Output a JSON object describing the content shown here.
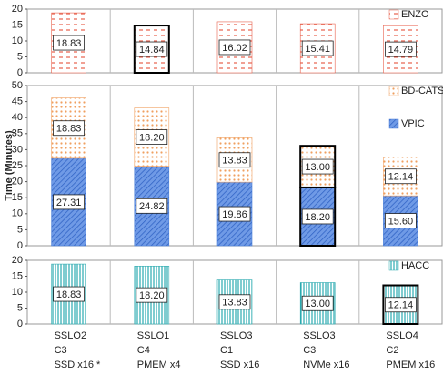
{
  "chart_data": [
    {
      "type": "bar",
      "stacked": true,
      "ylim": [
        0,
        20
      ],
      "yticks": [
        0,
        5,
        10,
        15,
        20
      ],
      "series": [
        {
          "name": "ENZO",
          "color": "#e8604c",
          "pattern": "dash",
          "values": [
            18.83,
            14.84,
            16.02,
            15.41,
            14.79
          ],
          "value_labels": [
            "18.83",
            "14.84",
            "16.02",
            "15.41",
            "14.79"
          ],
          "highlight": [
            1
          ]
        }
      ]
    },
    {
      "type": "bar",
      "stacked": true,
      "y_label": "Time (Minutes)",
      "ylim": [
        0,
        50
      ],
      "yticks": [
        0,
        5,
        10,
        15,
        20,
        25,
        30,
        35,
        40,
        45,
        50
      ],
      "series": [
        {
          "name": "VPIC",
          "color": "#4a7fd8",
          "pattern": "hatch",
          "values": [
            27.31,
            24.82,
            19.86,
            18.2,
            15.6
          ],
          "value_labels": [
            "27.31",
            "24.82",
            "19.86",
            "18.20",
            "15.60"
          ],
          "highlight": [
            3
          ]
        },
        {
          "name": "BD-CATS",
          "color": "#f0a060",
          "pattern": "dots",
          "values": [
            18.83,
            18.2,
            13.83,
            13.0,
            12.14
          ],
          "value_labels": [
            "18.83",
            "18.20",
            "13.83",
            "13.00",
            "12.14"
          ],
          "highlight": [
            3
          ]
        }
      ]
    },
    {
      "type": "bar",
      "stacked": true,
      "ylim": [
        0,
        20
      ],
      "yticks": [
        0,
        5,
        10,
        15,
        20
      ],
      "categories": [
        [
          "SSLO2",
          "C3",
          "SSD x16 *"
        ],
        [
          "SSLO1",
          "C4",
          "PMEM x4"
        ],
        [
          "SSLO3",
          "C1",
          "SSD x16"
        ],
        [
          "SSLO3",
          "C3",
          "NVMe x16"
        ],
        [
          "SSLO4",
          "C2",
          "PMEM x16"
        ]
      ],
      "series": [
        {
          "name": "HACC",
          "color": "#2aaab0",
          "pattern": "vlines",
          "values": [
            18.83,
            18.2,
            13.83,
            13.0,
            12.14
          ],
          "value_labels": [
            "18.83",
            "18.20",
            "13.83",
            "13.00",
            "12.14"
          ],
          "highlight": [
            4
          ]
        }
      ]
    }
  ]
}
